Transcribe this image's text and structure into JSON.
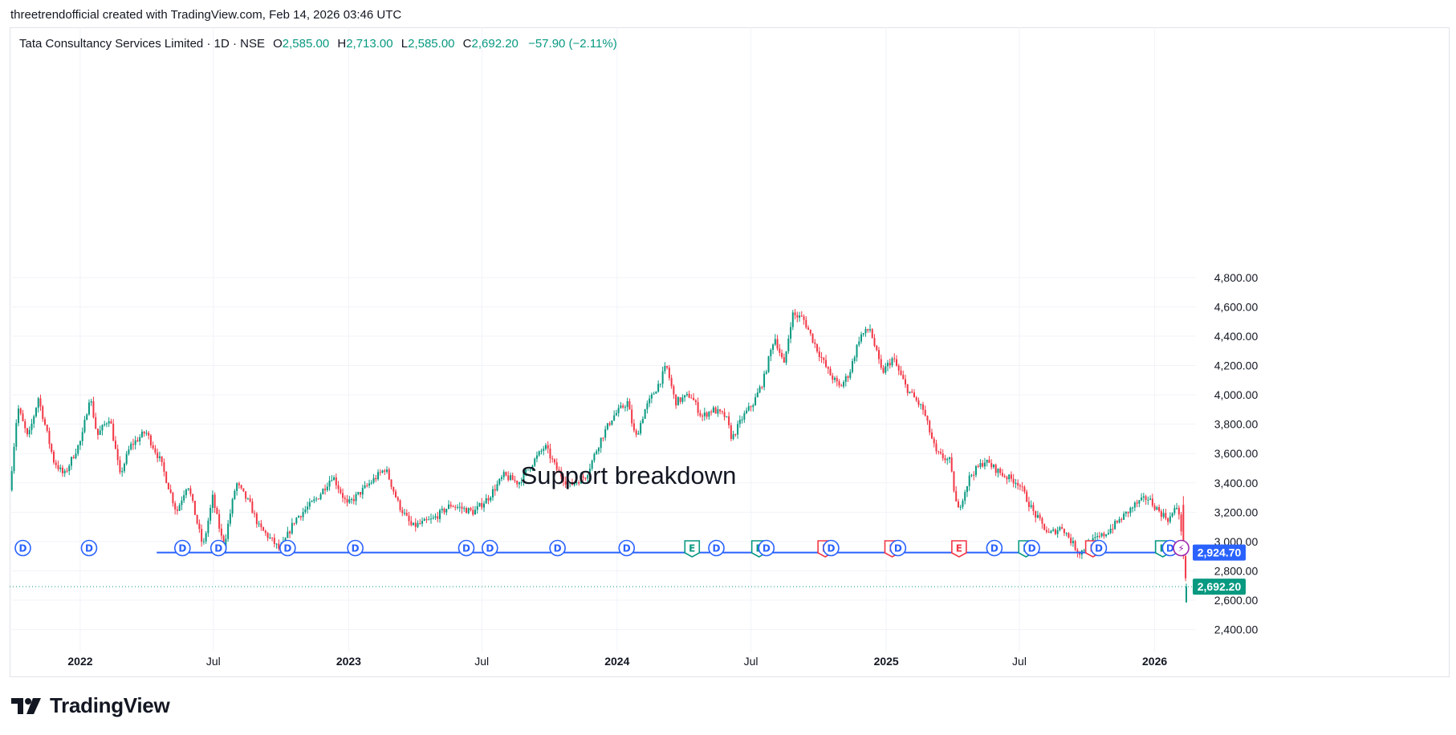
{
  "credit": "threetrendofficial created with TradingView.com, Feb 14, 2026 03:46 UTC",
  "legend": {
    "symbol": "Tata Consultancy Services Limited · 1D · NSE",
    "o_label": "O",
    "o": "2,585.00",
    "h_label": "H",
    "h": "2,713.00",
    "l_label": "L",
    "l": "2,585.00",
    "c_label": "C",
    "c": "2,692.20",
    "change": "−57.90 (−2.11%)"
  },
  "brand": {
    "name": "TradingView",
    "icon": "tradingview-logo-icon"
  },
  "colors": {
    "up": "#089981",
    "down": "#f23645",
    "support": "#2962ff",
    "last": "#089981",
    "dividend": "#2962ff",
    "earnings_up": "#089981",
    "earnings_down": "#f23645",
    "split": "#9c27b0"
  },
  "chart_data": {
    "type": "candlestick",
    "symbol": "TCS",
    "interval": "1D",
    "exchange": "NSE",
    "ylim": [
      2400,
      4800
    ],
    "y_ticks": [
      2400,
      2600,
      2800,
      3000,
      3200,
      3400,
      3600,
      3800,
      4000,
      4200,
      4400,
      4600,
      4800
    ],
    "y_tick_labels": [
      "2,400.00",
      "2,600.00",
      "2,800.00",
      "3,000.00",
      "3,200.00",
      "3,400.00",
      "3,600.00",
      "3,800.00",
      "4,000.00",
      "4,200.00",
      "4,400.00",
      "4,600.00",
      "4,800.00"
    ],
    "x_start": "2021-09-27",
    "x_end": "2026-02-13",
    "x_ticks": [
      {
        "date": "2022-01-01",
        "label": "2022",
        "bold": true
      },
      {
        "date": "2022-07-01",
        "label": "Jul",
        "bold": false
      },
      {
        "date": "2023-01-01",
        "label": "2023",
        "bold": true
      },
      {
        "date": "2023-07-01",
        "label": "Jul",
        "bold": false
      },
      {
        "date": "2024-01-01",
        "label": "2024",
        "bold": true
      },
      {
        "date": "2024-07-01",
        "label": "Jul",
        "bold": false
      },
      {
        "date": "2025-01-01",
        "label": "2025",
        "bold": true
      },
      {
        "date": "2025-07-01",
        "label": "Jul",
        "bold": false
      },
      {
        "date": "2026-01-01",
        "label": "2026",
        "bold": true
      }
    ],
    "price_path": [
      [
        "2021-09-27",
        3350
      ],
      [
        "2021-10-08",
        3920
      ],
      [
        "2021-10-22",
        3700
      ],
      [
        "2021-11-05",
        3980
      ],
      [
        "2021-11-26",
        3550
      ],
      [
        "2021-12-10",
        3450
      ],
      [
        "2021-12-24",
        3600
      ],
      [
        "2022-01-03",
        3700
      ],
      [
        "2022-01-14",
        4000
      ],
      [
        "2022-01-24",
        3720
      ],
      [
        "2022-02-10",
        3850
      ],
      [
        "2022-02-24",
        3450
      ],
      [
        "2022-03-10",
        3650
      ],
      [
        "2022-03-31",
        3750
      ],
      [
        "2022-04-20",
        3550
      ],
      [
        "2022-05-12",
        3200
      ],
      [
        "2022-05-27",
        3400
      ],
      [
        "2022-06-17",
        2960
      ],
      [
        "2022-06-30",
        3300
      ],
      [
        "2022-07-15",
        2960
      ],
      [
        "2022-08-01",
        3400
      ],
      [
        "2022-08-20",
        3250
      ],
      [
        "2022-09-01",
        3100
      ],
      [
        "2022-09-20",
        3000
      ],
      [
        "2022-09-30",
        2940
      ],
      [
        "2022-10-20",
        3150
      ],
      [
        "2022-11-20",
        3300
      ],
      [
        "2022-12-10",
        3450
      ],
      [
        "2022-12-30",
        3250
      ],
      [
        "2023-01-20",
        3350
      ],
      [
        "2023-02-20",
        3500
      ],
      [
        "2023-03-10",
        3250
      ],
      [
        "2023-03-28",
        3100
      ],
      [
        "2023-04-25",
        3150
      ],
      [
        "2023-05-20",
        3250
      ],
      [
        "2023-06-20",
        3200
      ],
      [
        "2023-07-10",
        3300
      ],
      [
        "2023-07-31",
        3450
      ],
      [
        "2023-08-20",
        3400
      ],
      [
        "2023-09-10",
        3550
      ],
      [
        "2023-09-25",
        3650
      ],
      [
        "2023-10-10",
        3500
      ],
      [
        "2023-10-28",
        3380
      ],
      [
        "2023-11-20",
        3450
      ],
      [
        "2023-12-10",
        3700
      ],
      [
        "2023-12-26",
        3850
      ],
      [
        "2024-01-15",
        3950
      ],
      [
        "2024-01-26",
        3700
      ],
      [
        "2024-02-08",
        3900
      ],
      [
        "2024-02-29",
        4100
      ],
      [
        "2024-03-08",
        4200
      ],
      [
        "2024-03-20",
        3950
      ],
      [
        "2024-04-10",
        4000
      ],
      [
        "2024-04-25",
        3850
      ],
      [
        "2024-05-10",
        3900
      ],
      [
        "2024-05-28",
        3850
      ],
      [
        "2024-06-05",
        3700
      ],
      [
        "2024-06-20",
        3850
      ],
      [
        "2024-07-05",
        3950
      ],
      [
        "2024-07-18",
        4100
      ],
      [
        "2024-08-02",
        4400
      ],
      [
        "2024-08-15",
        4200
      ],
      [
        "2024-08-26",
        4550
      ],
      [
        "2024-09-10",
        4520
      ],
      [
        "2024-09-30",
        4300
      ],
      [
        "2024-10-15",
        4150
      ],
      [
        "2024-10-30",
        4050
      ],
      [
        "2024-11-12",
        4150
      ],
      [
        "2024-11-26",
        4400
      ],
      [
        "2024-12-10",
        4450
      ],
      [
        "2024-12-26",
        4150
      ],
      [
        "2025-01-10",
        4250
      ],
      [
        "2025-01-28",
        4050
      ],
      [
        "2025-02-20",
        3900
      ],
      [
        "2025-03-10",
        3600
      ],
      [
        "2025-03-28",
        3550
      ],
      [
        "2025-04-08",
        3200
      ],
      [
        "2025-04-25",
        3450
      ],
      [
        "2025-05-15",
        3550
      ],
      [
        "2025-06-10",
        3450
      ],
      [
        "2025-06-30",
        3400
      ],
      [
        "2025-07-20",
        3200
      ],
      [
        "2025-08-10",
        3050
      ],
      [
        "2025-08-28",
        3100
      ],
      [
        "2025-09-20",
        2920
      ],
      [
        "2025-10-08",
        3000
      ],
      [
        "2025-10-25",
        3050
      ],
      [
        "2025-11-15",
        3150
      ],
      [
        "2025-12-05",
        3250
      ],
      [
        "2025-12-22",
        3300
      ],
      [
        "2026-01-08",
        3200
      ],
      [
        "2026-01-20",
        3150
      ],
      [
        "2026-02-02",
        3250
      ],
      [
        "2026-02-09",
        2900
      ],
      [
        "2026-02-12",
        2750
      ],
      [
        "2026-02-13",
        2692.2
      ]
    ],
    "support_line": {
      "value": 2924.7,
      "label": "2,924.70",
      "from": "2022-04-15",
      "to": "2026-02-13"
    },
    "last_price": {
      "value": 2692.2,
      "label": "2,692.20"
    },
    "annotation": "Support breakdown",
    "events": [
      {
        "date": "2021-10-15",
        "kind": "D"
      },
      {
        "date": "2022-01-13",
        "kind": "D"
      },
      {
        "date": "2022-05-20",
        "kind": "D"
      },
      {
        "date": "2022-07-08",
        "kind": "D"
      },
      {
        "date": "2022-10-10",
        "kind": "D"
      },
      {
        "date": "2023-01-10",
        "kind": "D"
      },
      {
        "date": "2023-06-10",
        "kind": "D"
      },
      {
        "date": "2023-07-12",
        "kind": "D"
      },
      {
        "date": "2023-10-12",
        "kind": "D"
      },
      {
        "date": "2024-01-14",
        "kind": "D"
      },
      {
        "date": "2024-04-12",
        "kind": "E",
        "tone": "up"
      },
      {
        "date": "2024-05-15",
        "kind": "D"
      },
      {
        "date": "2024-07-12",
        "kind": "E",
        "tone": "up"
      },
      {
        "date": "2024-07-22",
        "kind": "D"
      },
      {
        "date": "2024-10-10",
        "kind": "E",
        "tone": "down"
      },
      {
        "date": "2024-10-18",
        "kind": "D"
      },
      {
        "date": "2025-01-09",
        "kind": "E",
        "tone": "down"
      },
      {
        "date": "2025-01-17",
        "kind": "D"
      },
      {
        "date": "2025-04-10",
        "kind": "E",
        "tone": "down"
      },
      {
        "date": "2025-05-28",
        "kind": "D"
      },
      {
        "date": "2025-07-10",
        "kind": "E",
        "tone": "up"
      },
      {
        "date": "2025-07-18",
        "kind": "D"
      },
      {
        "date": "2025-10-09",
        "kind": "E",
        "tone": "down"
      },
      {
        "date": "2025-10-17",
        "kind": "D"
      },
      {
        "date": "2026-01-12",
        "kind": "E",
        "tone": "up"
      },
      {
        "date": "2026-01-22",
        "kind": "D"
      },
      {
        "date": "2026-02-06",
        "kind": "S"
      }
    ],
    "event_glyphs": {
      "D": "D",
      "E": "E",
      "S": "⚡"
    }
  }
}
